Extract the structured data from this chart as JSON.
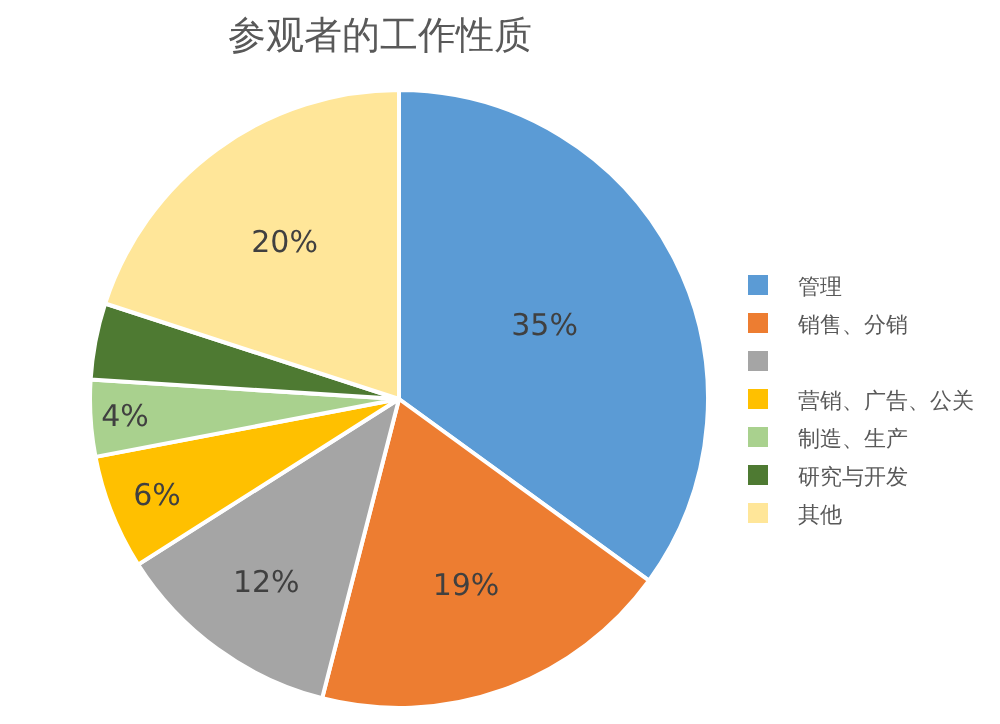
{
  "chart_data": {
    "type": "pie",
    "title": "参观者的工作性质",
    "categories": [
      "管理",
      "销售、分销",
      null,
      "营销、广告、公关",
      "制造、生产",
      "研究与开发",
      "其他"
    ],
    "values": [
      35,
      19,
      12,
      6,
      4,
      4,
      20
    ],
    "value_labels": [
      "35%",
      "19%",
      "12%",
      "6%",
      "4%",
      null,
      "20%"
    ],
    "colors": [
      "#5b9bd5",
      "#ed7d31",
      "#a5a5a5",
      "#ffc000",
      "#a9d18e",
      "#4e7a32",
      "#ffe699"
    ],
    "legend": "right"
  }
}
